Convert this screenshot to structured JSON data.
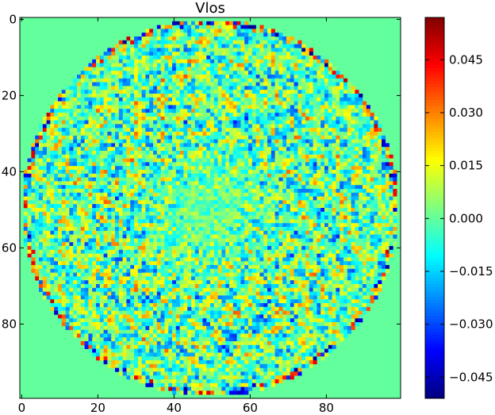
{
  "chart_data": {
    "type": "heatmap",
    "title": "Vlos",
    "grid_size": [
      100,
      100
    ],
    "x_ticks": [
      "0",
      "20",
      "40",
      "60",
      "80"
    ],
    "x_tick_values": [
      0,
      20,
      40,
      60,
      80
    ],
    "y_ticks": [
      "0",
      "20",
      "40",
      "60",
      "80"
    ],
    "y_tick_values": [
      0,
      20,
      40,
      60,
      80
    ],
    "xlim": [
      -0.5,
      99.5
    ],
    "ylim": [
      99.5,
      -0.5
    ],
    "y_inverted": true,
    "colormap": "jet",
    "vmin": -0.051,
    "vmax": 0.057,
    "background_value": 0.0,
    "disk": {
      "center": [
        49.5,
        49.5
      ],
      "radius": 49.5
    },
    "colorbar": {
      "ticks": [
        "0.045",
        "0.030",
        "0.015",
        "0.000",
        "−0.015",
        "−0.030",
        "−0.045"
      ],
      "tick_values": [
        0.045,
        0.03,
        0.015,
        0.0,
        -0.015,
        -0.03,
        -0.045
      ]
    },
    "grid": false
  }
}
